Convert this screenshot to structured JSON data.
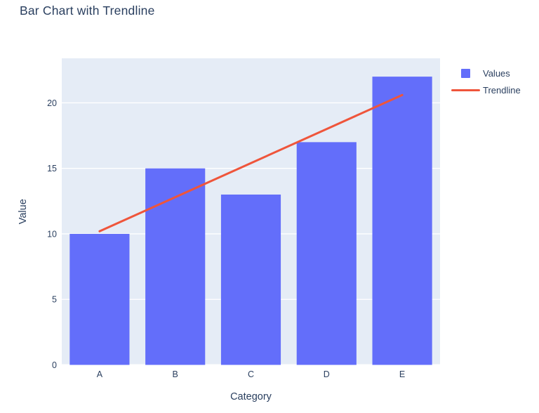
{
  "chart_data": {
    "type": "bar",
    "title": "Bar Chart with Trendline",
    "categories": [
      "A",
      "B",
      "C",
      "D",
      "E"
    ],
    "series": [
      {
        "name": "Values",
        "type": "bar",
        "values": [
          10,
          15,
          13,
          17,
          22
        ],
        "color": "#636EFA"
      },
      {
        "name": "Trendline",
        "type": "line",
        "values": [
          10.2,
          12.8,
          15.4,
          18.0,
          20.6
        ],
        "color": "#EF553B"
      }
    ],
    "xlabel": "Category",
    "ylabel": "Value",
    "ylim": [
      0,
      23.4
    ],
    "yticks": [
      0,
      5,
      10,
      15,
      20
    ],
    "grid": true,
    "legend_position": "right-top",
    "colors": {
      "plot_bg": "#E5ECF6",
      "grid": "#FFFFFF",
      "text": "#2A3F5F",
      "page_bg": "#FFFFFF"
    }
  }
}
